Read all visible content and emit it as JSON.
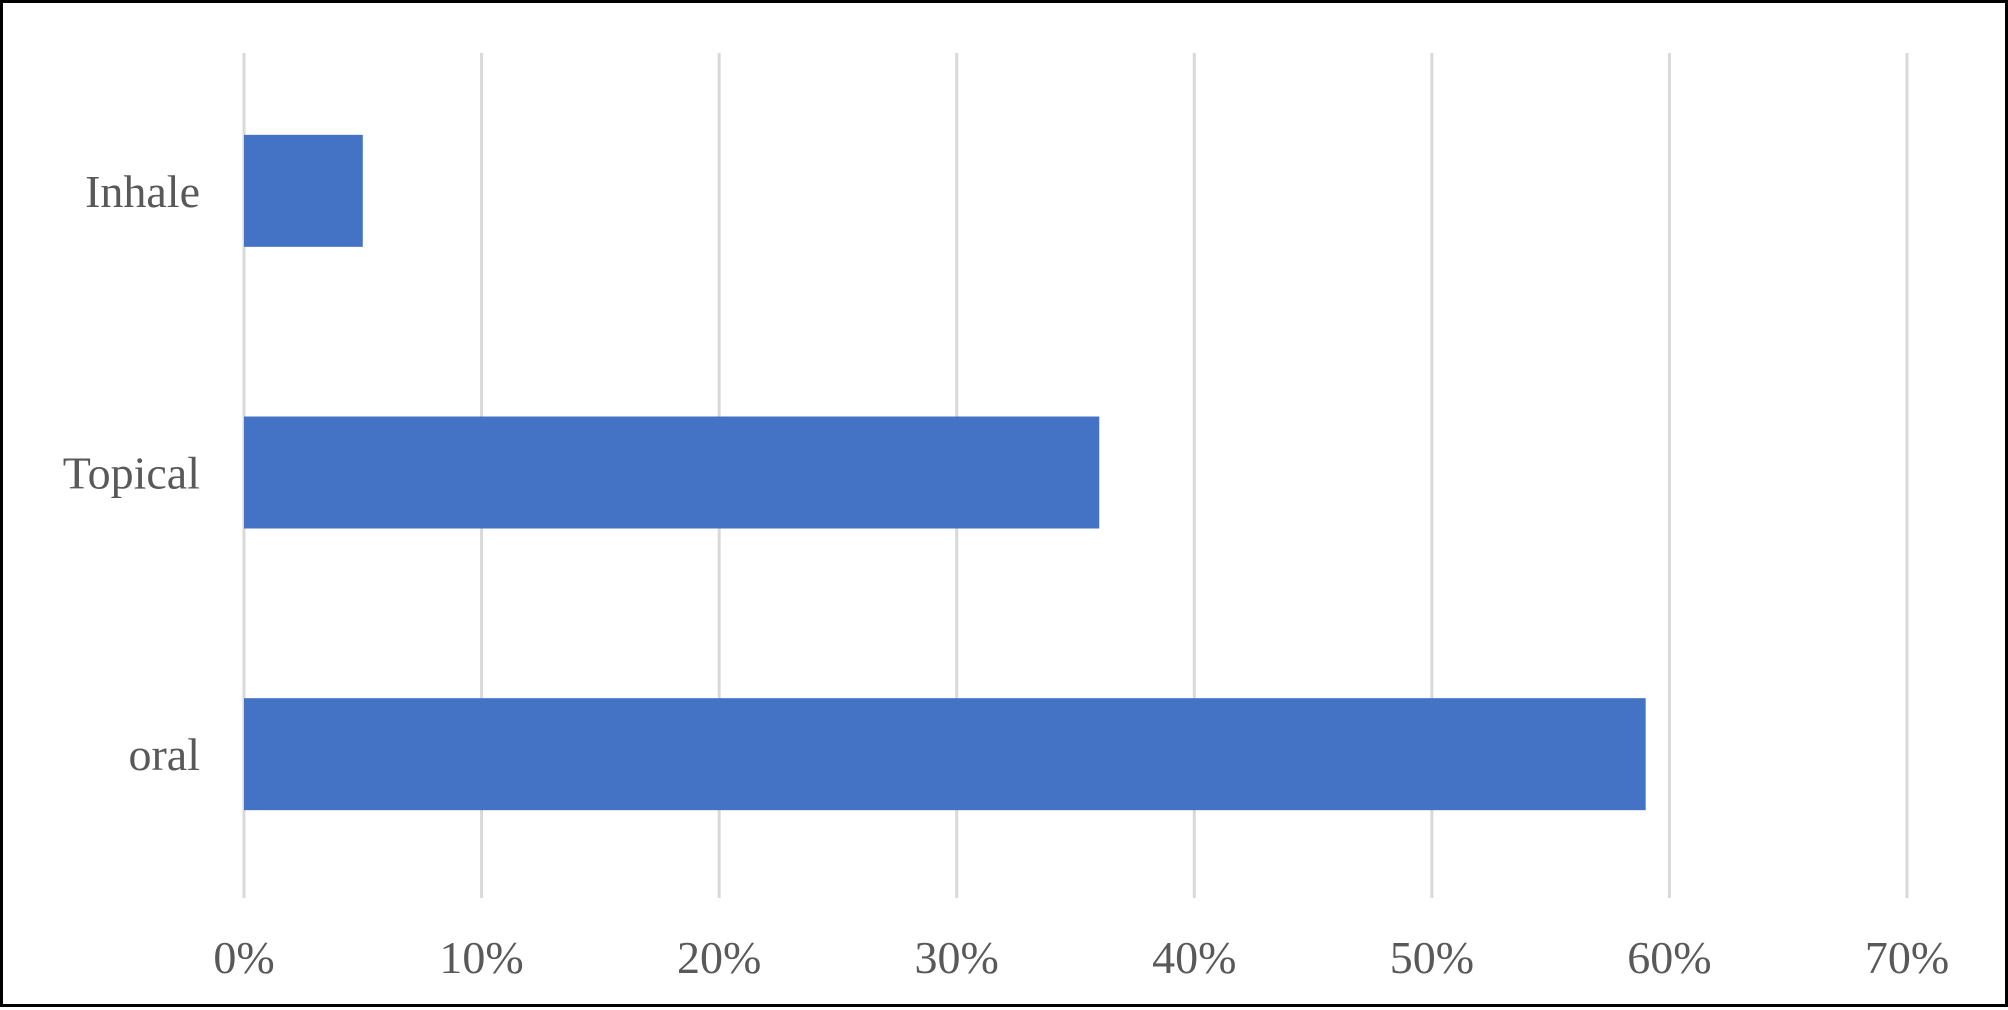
{
  "chart_data": {
    "type": "bar",
    "orientation": "horizontal",
    "title": "",
    "xlabel": "",
    "ylabel": "",
    "categories": [
      "Inhale",
      "Topical",
      "oral"
    ],
    "values": [
      0.05,
      0.36,
      0.59
    ],
    "xlim": [
      0,
      0.7
    ],
    "x_ticks": [
      0,
      0.1,
      0.2,
      0.3,
      0.4,
      0.5,
      0.6,
      0.7
    ],
    "x_tick_labels": [
      "0%",
      "10%",
      "20%",
      "30%",
      "40%",
      "50%",
      "60%",
      "70%"
    ],
    "grid": "vertical",
    "legend": "none",
    "bar_color": "#4472C4",
    "gridline_color": "#D9D9D9",
    "label_color": "#595959"
  }
}
